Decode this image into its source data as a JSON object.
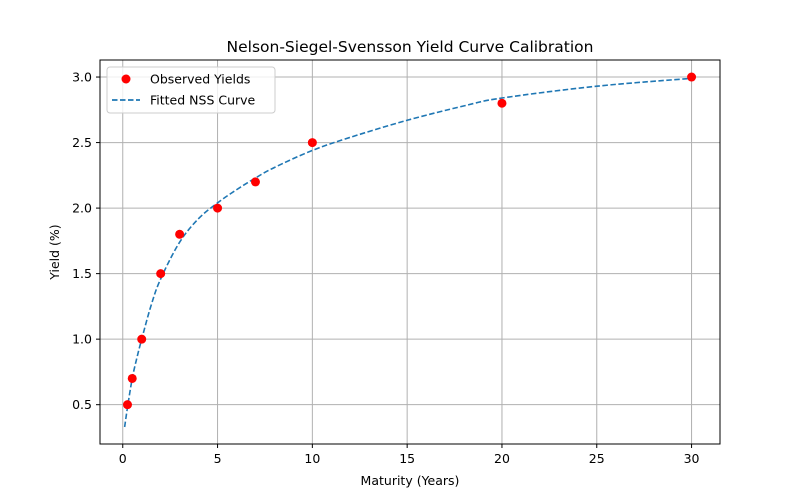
{
  "chart_data": {
    "type": "line",
    "title": "Nelson-Siegel-Svensson Yield Curve Calibration",
    "xlabel": "Maturity (Years)",
    "ylabel": "Yield (%)",
    "xlim": [
      -1.2,
      31.5
    ],
    "ylim": [
      0.2,
      3.13
    ],
    "xticks": [
      0,
      5,
      10,
      15,
      20,
      25,
      30
    ],
    "yticks": [
      0.5,
      1.0,
      1.5,
      2.0,
      2.5,
      3.0
    ],
    "xtick_labels": [
      "0",
      "5",
      "10",
      "15",
      "20",
      "25",
      "30"
    ],
    "ytick_labels": [
      "0.5",
      "1.0",
      "1.5",
      "2.0",
      "2.5",
      "3.0"
    ],
    "grid": true,
    "legend_position": "top-left",
    "series": [
      {
        "name": "Observed Yields",
        "kind": "scatter",
        "color": "#ff0000",
        "x": [
          0.25,
          0.5,
          1,
          2,
          3,
          5,
          7,
          10,
          20,
          30
        ],
        "y": [
          0.5,
          0.7,
          1.0,
          1.5,
          1.8,
          2.0,
          2.2,
          2.5,
          2.8,
          3.0
        ]
      },
      {
        "name": "Fitted NSS Curve",
        "kind": "line",
        "style": "dashed",
        "color": "#1f77b4",
        "x": [
          0.1,
          0.25,
          0.5,
          0.75,
          1,
          1.5,
          2,
          3,
          4,
          5,
          6,
          7,
          8,
          10,
          12,
          15,
          18,
          20,
          25,
          30
        ],
        "y": [
          0.33,
          0.48,
          0.7,
          0.86,
          1.0,
          1.26,
          1.46,
          1.74,
          1.92,
          2.04,
          2.14,
          2.23,
          2.31,
          2.44,
          2.54,
          2.67,
          2.78,
          2.84,
          2.93,
          2.99
        ]
      }
    ]
  }
}
